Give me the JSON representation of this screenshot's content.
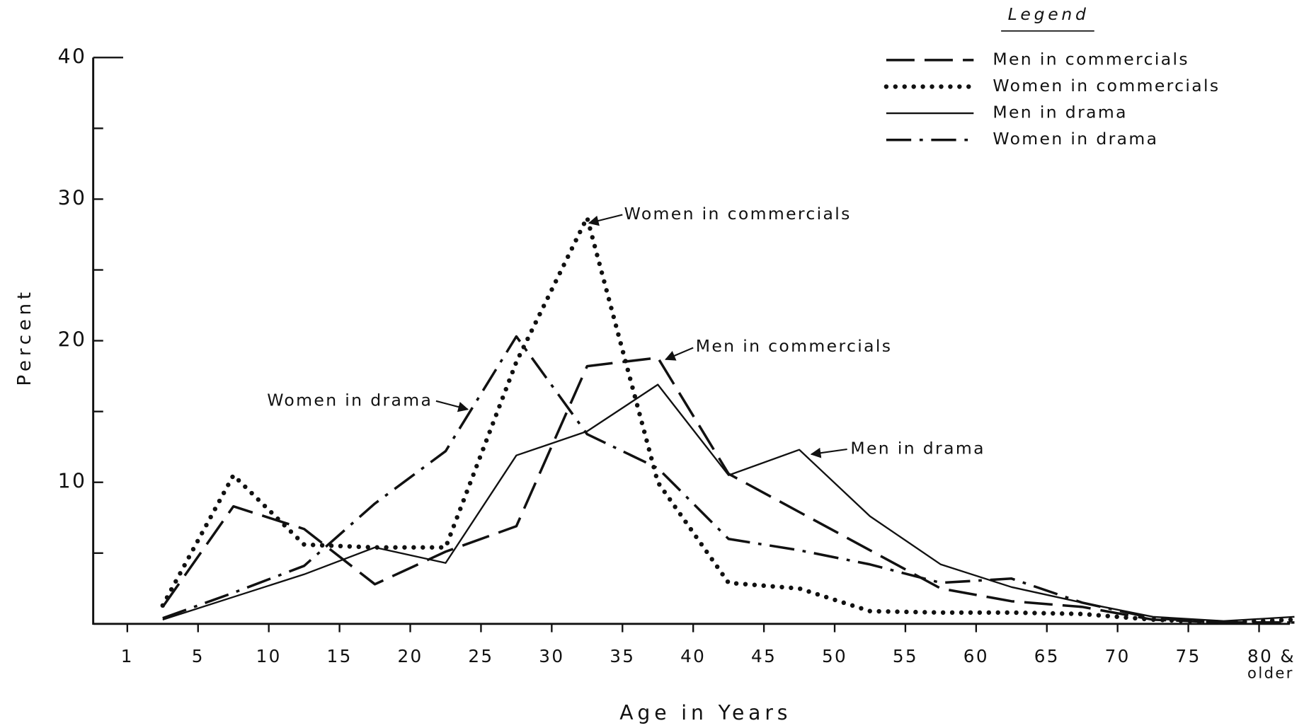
{
  "chart_data": {
    "type": "line",
    "x_label": "Age in Years",
    "y_label": "Percent",
    "legend_title": "Legend",
    "legend_position": "top-right",
    "categories": [
      "1",
      "5",
      "10",
      "15",
      "20",
      "25",
      "30",
      "35",
      "40",
      "45",
      "50",
      "55",
      "60",
      "65",
      "70",
      "75",
      "80 & older"
    ],
    "ylim": [
      0,
      40
    ],
    "yticks": [
      10,
      20,
      30,
      40
    ],
    "yminor": [
      5,
      15,
      25,
      35
    ],
    "series": [
      {
        "name": "Men in commercials",
        "color": "#111111",
        "dash": "dashed",
        "values": [
          1.2,
          8.3,
          6.7,
          2.8,
          5.1,
          6.9,
          18.2,
          18.8,
          10.6,
          7.9,
          5.2,
          2.5,
          1.6,
          1.2,
          0.3,
          0.1,
          0.1
        ]
      },
      {
        "name": "Women in commercials",
        "color": "#111111",
        "dash": "dotted",
        "values": [
          1.3,
          10.5,
          5.6,
          5.4,
          5.4,
          18.5,
          28.7,
          10.0,
          2.9,
          2.5,
          0.9,
          0.8,
          0.8,
          0.7,
          0.3,
          0.1,
          0.3
        ]
      },
      {
        "name": "Men in drama",
        "color": "#111111",
        "dash": "solid",
        "values": [
          0.3,
          1.9,
          3.5,
          5.4,
          4.3,
          11.9,
          13.6,
          16.9,
          10.5,
          12.3,
          7.6,
          4.2,
          2.6,
          1.5,
          0.5,
          0.2,
          0.5
        ]
      },
      {
        "name": "Women in drama",
        "color": "#111111",
        "dash": "dashdot",
        "values": [
          0.4,
          2.2,
          4.1,
          8.5,
          12.2,
          20.3,
          13.4,
          11.0,
          6.0,
          5.2,
          4.2,
          2.9,
          3.2,
          1.5,
          0.4,
          0.1,
          0.1
        ]
      }
    ],
    "annotations": [
      "Women in commercials",
      "Men in commercials",
      "Women in drama",
      "Men in drama"
    ]
  }
}
